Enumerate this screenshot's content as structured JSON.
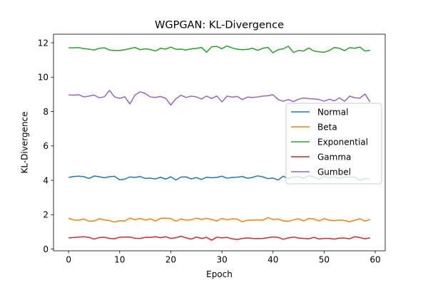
{
  "chart_data": {
    "type": "line",
    "title": "WGPGAN: KL-Divergence",
    "xlabel": "Epoch",
    "ylabel": "KL-Divergence",
    "xlim": [
      -2.95,
      61.95
    ],
    "ylim": [
      -0.1,
      12.5
    ],
    "xticks": [
      0,
      10,
      20,
      30,
      40,
      50,
      60
    ],
    "yticks": [
      0,
      2,
      4,
      6,
      8,
      10,
      12
    ],
    "grid": false,
    "legend_position": "center-right",
    "x": [
      0,
      1,
      2,
      3,
      4,
      5,
      6,
      7,
      8,
      9,
      10,
      11,
      12,
      13,
      14,
      15,
      16,
      17,
      18,
      19,
      20,
      21,
      22,
      23,
      24,
      25,
      26,
      27,
      28,
      29,
      30,
      31,
      32,
      33,
      34,
      35,
      36,
      37,
      38,
      39,
      40,
      41,
      42,
      43,
      44,
      45,
      46,
      47,
      48,
      49,
      50,
      51,
      52,
      53,
      54,
      55,
      56,
      57,
      58,
      59
    ],
    "series": [
      {
        "name": "Normal",
        "color": "#1f77b4",
        "values": [
          4.17,
          4.22,
          4.24,
          4.21,
          4.11,
          4.25,
          4.21,
          4.15,
          4.21,
          4.23,
          4.03,
          4.07,
          4.2,
          4.17,
          4.22,
          4.11,
          4.13,
          4.08,
          4.18,
          4.07,
          4.21,
          4.02,
          4.19,
          4.2,
          4.08,
          4.16,
          4.05,
          4.18,
          4.15,
          4.17,
          4.24,
          4.12,
          4.17,
          4.18,
          4.22,
          4.12,
          4.17,
          4.26,
          4.2,
          4.1,
          4.13,
          4.02,
          4.24,
          4.1,
          4.2,
          4.22,
          4.12,
          4.26,
          4.2,
          4.06,
          4.22,
          4.15,
          4.2,
          4.11,
          4.21,
          4.18,
          4.2,
          4.0,
          4.1,
          4.05
        ]
      },
      {
        "name": "Beta",
        "color": "#ff7f0e",
        "values": [
          1.78,
          1.7,
          1.68,
          1.75,
          1.62,
          1.64,
          1.76,
          1.7,
          1.66,
          1.57,
          1.65,
          1.63,
          1.8,
          1.71,
          1.78,
          1.69,
          1.76,
          1.64,
          1.79,
          1.8,
          1.77,
          1.62,
          1.75,
          1.68,
          1.71,
          1.8,
          1.72,
          1.79,
          1.72,
          1.63,
          1.78,
          1.7,
          1.76,
          1.74,
          1.59,
          1.68,
          1.68,
          1.7,
          1.68,
          1.83,
          1.72,
          1.75,
          1.64,
          1.62,
          1.7,
          1.76,
          1.64,
          1.78,
          1.75,
          1.64,
          1.77,
          1.68,
          1.65,
          1.68,
          1.66,
          1.59,
          1.68,
          1.76,
          1.63,
          1.72
        ]
      },
      {
        "name": "Exponential",
        "color": "#2ca02c",
        "values": [
          11.7,
          11.71,
          11.72,
          11.66,
          11.63,
          11.58,
          11.68,
          11.71,
          11.58,
          11.55,
          11.55,
          11.6,
          11.66,
          11.73,
          11.6,
          11.65,
          11.61,
          11.52,
          11.68,
          11.63,
          11.75,
          11.62,
          11.63,
          11.58,
          11.65,
          11.67,
          11.73,
          11.45,
          11.77,
          11.79,
          11.66,
          11.82,
          11.7,
          11.63,
          11.6,
          11.62,
          11.68,
          11.56,
          11.68,
          11.73,
          11.42,
          11.6,
          11.65,
          11.8,
          11.44,
          11.55,
          11.52,
          11.7,
          11.52,
          11.48,
          11.45,
          11.55,
          11.73,
          11.68,
          11.54,
          11.72,
          11.68,
          11.75,
          11.52,
          11.56
        ]
      },
      {
        "name": "Gamma",
        "color": "#d62728",
        "values": [
          0.65,
          0.67,
          0.7,
          0.72,
          0.68,
          0.58,
          0.67,
          0.69,
          0.62,
          0.6,
          0.69,
          0.7,
          0.7,
          0.63,
          0.62,
          0.68,
          0.68,
          0.72,
          0.66,
          0.72,
          0.62,
          0.66,
          0.75,
          0.65,
          0.58,
          0.7,
          0.62,
          0.68,
          0.52,
          0.69,
          0.65,
          0.68,
          0.6,
          0.56,
          0.62,
          0.65,
          0.62,
          0.61,
          0.62,
          0.66,
          0.71,
          0.68,
          0.57,
          0.65,
          0.7,
          0.64,
          0.62,
          0.6,
          0.68,
          0.59,
          0.62,
          0.62,
          0.58,
          0.64,
          0.64,
          0.6,
          0.72,
          0.67,
          0.6,
          0.65
        ]
      },
      {
        "name": "Gumbel",
        "color": "#9467bd",
        "values": [
          8.97,
          8.95,
          8.98,
          8.85,
          8.9,
          8.96,
          8.8,
          8.86,
          9.23,
          8.85,
          8.77,
          8.86,
          8.44,
          8.96,
          9.15,
          9.05,
          8.85,
          8.82,
          8.88,
          8.77,
          8.38,
          8.75,
          8.95,
          8.82,
          8.9,
          8.85,
          8.73,
          8.9,
          8.76,
          8.9,
          8.56,
          8.9,
          8.84,
          8.88,
          8.7,
          8.84,
          8.82,
          8.85,
          8.9,
          8.92,
          8.98,
          8.7,
          8.6,
          8.7,
          8.58,
          8.72,
          8.79,
          8.75,
          8.74,
          8.7,
          8.6,
          8.72,
          8.62,
          8.8,
          8.6,
          8.9,
          8.8,
          8.78,
          9.02,
          8.56
        ]
      }
    ]
  }
}
